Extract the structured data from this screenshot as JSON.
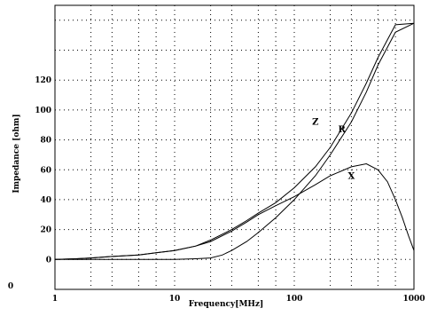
{
  "chart_data": {
    "type": "line",
    "xlabel": "Frequency[MHz]",
    "ylabel": "Impedance [ohm]",
    "x_scale": "log",
    "xlim": [
      1,
      1000
    ],
    "ylim": [
      -20,
      170
    ],
    "x_ticks": [
      {
        "value": 1,
        "label": "1"
      },
      {
        "value": 10,
        "label": "10"
      },
      {
        "value": 100,
        "label": "100"
      },
      {
        "value": 1000,
        "label": "1000"
      }
    ],
    "y_ticks": [
      {
        "value": 0,
        "label": "0"
      },
      {
        "value": 20,
        "label": "20"
      },
      {
        "value": 40,
        "label": "40"
      },
      {
        "value": 60,
        "label": "60"
      },
      {
        "value": 80,
        "label": "80"
      },
      {
        "value": 100,
        "label": "100"
      },
      {
        "value": 120,
        "label": "120"
      }
    ],
    "stray_label": "0",
    "grid": true,
    "series": [
      {
        "name": "Z",
        "label_pos": {
          "x": 150,
          "y": 90
        },
        "x": [
          1,
          1.5,
          2,
          3,
          5,
          7,
          10,
          15,
          20,
          30,
          40,
          50,
          70,
          100,
          150,
          200,
          300,
          400,
          500,
          700,
          1000
        ],
        "y": [
          0,
          0.5,
          1,
          2,
          3,
          4.5,
          6,
          9,
          13,
          20,
          26,
          31,
          38,
          48,
          62,
          75,
          98,
          118,
          135,
          157,
          158
        ]
      },
      {
        "name": "R",
        "label_pos": {
          "x": 250,
          "y": 85
        },
        "x": [
          1,
          5,
          10,
          15,
          20,
          25,
          30,
          40,
          50,
          70,
          100,
          150,
          200,
          300,
          400,
          500,
          700,
          1000
        ],
        "y": [
          0,
          0,
          0,
          0.5,
          1,
          3,
          6,
          12,
          18,
          28,
          40,
          56,
          70,
          92,
          112,
          130,
          152,
          158
        ]
      },
      {
        "name": "X",
        "label_pos": {
          "x": 300,
          "y": 54
        },
        "x": [
          1,
          1.5,
          2,
          3,
          5,
          7,
          10,
          15,
          20,
          30,
          40,
          50,
          70,
          100,
          150,
          200,
          300,
          400,
          500,
          600,
          700,
          800,
          900,
          1000
        ],
        "y": [
          0,
          0.5,
          1,
          2,
          3,
          4.5,
          6,
          9,
          12,
          19,
          25,
          30,
          36,
          42,
          50,
          56,
          62,
          64,
          60,
          52,
          40,
          28,
          16,
          6
        ]
      }
    ]
  }
}
